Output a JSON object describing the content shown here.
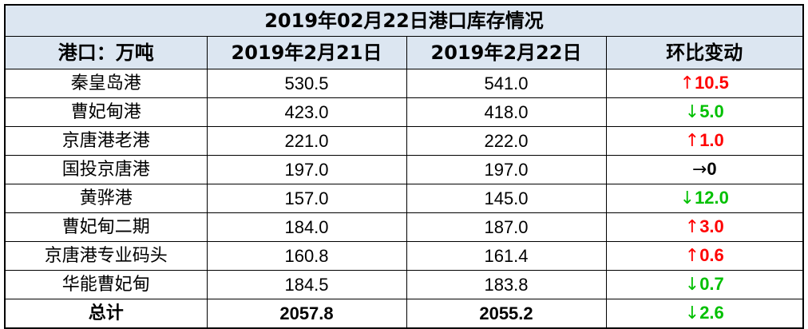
{
  "table": {
    "title": "2019年02月22日港口库存情况",
    "header": [
      "港口：万吨",
      "2019年2月21日",
      "2019年2月22日",
      "环比变动"
    ],
    "rows": [
      [
        "秦皇岛港",
        "530.5",
        "541.0",
        {
          "arrow": "↑",
          "value": "10.5",
          "color": "#ff0000"
        }
      ],
      [
        "曹妃甸港",
        "423.0",
        "418.0",
        {
          "arrow": "↓",
          "value": "5.0",
          "color": "#00c000"
        }
      ],
      [
        "京唐港老港",
        "221.0",
        "222.0",
        {
          "arrow": "↑",
          "value": "1.0",
          "color": "#ff0000"
        }
      ],
      [
        "国投京唐港",
        "197.0",
        "197.0",
        {
          "arrow": "→",
          "value": "0",
          "color": "#000000"
        }
      ],
      [
        "黄骅港",
        "157.0",
        "145.0",
        {
          "arrow": "↓",
          "value": "12.0",
          "color": "#00c000"
        }
      ],
      [
        "曹妃甸二期",
        "184.0",
        "187.0",
        {
          "arrow": "↑",
          "value": "3.0",
          "color": "#ff0000"
        }
      ],
      [
        "京唐港专业码头",
        "160.8",
        "161.4",
        {
          "arrow": "↑",
          "value": "0.6",
          "color": "#ff0000"
        }
      ],
      [
        "华能曹妃甸",
        "184.5",
        "183.8",
        {
          "arrow": "↓",
          "value": "0.7",
          "color": "#00c000"
        }
      ]
    ],
    "total": [
      "总计",
      "2057.8",
      "2055.2",
      {
        "arrow": "↓",
        "value": "2.6",
        "color": "#00c000"
      }
    ]
  }
}
